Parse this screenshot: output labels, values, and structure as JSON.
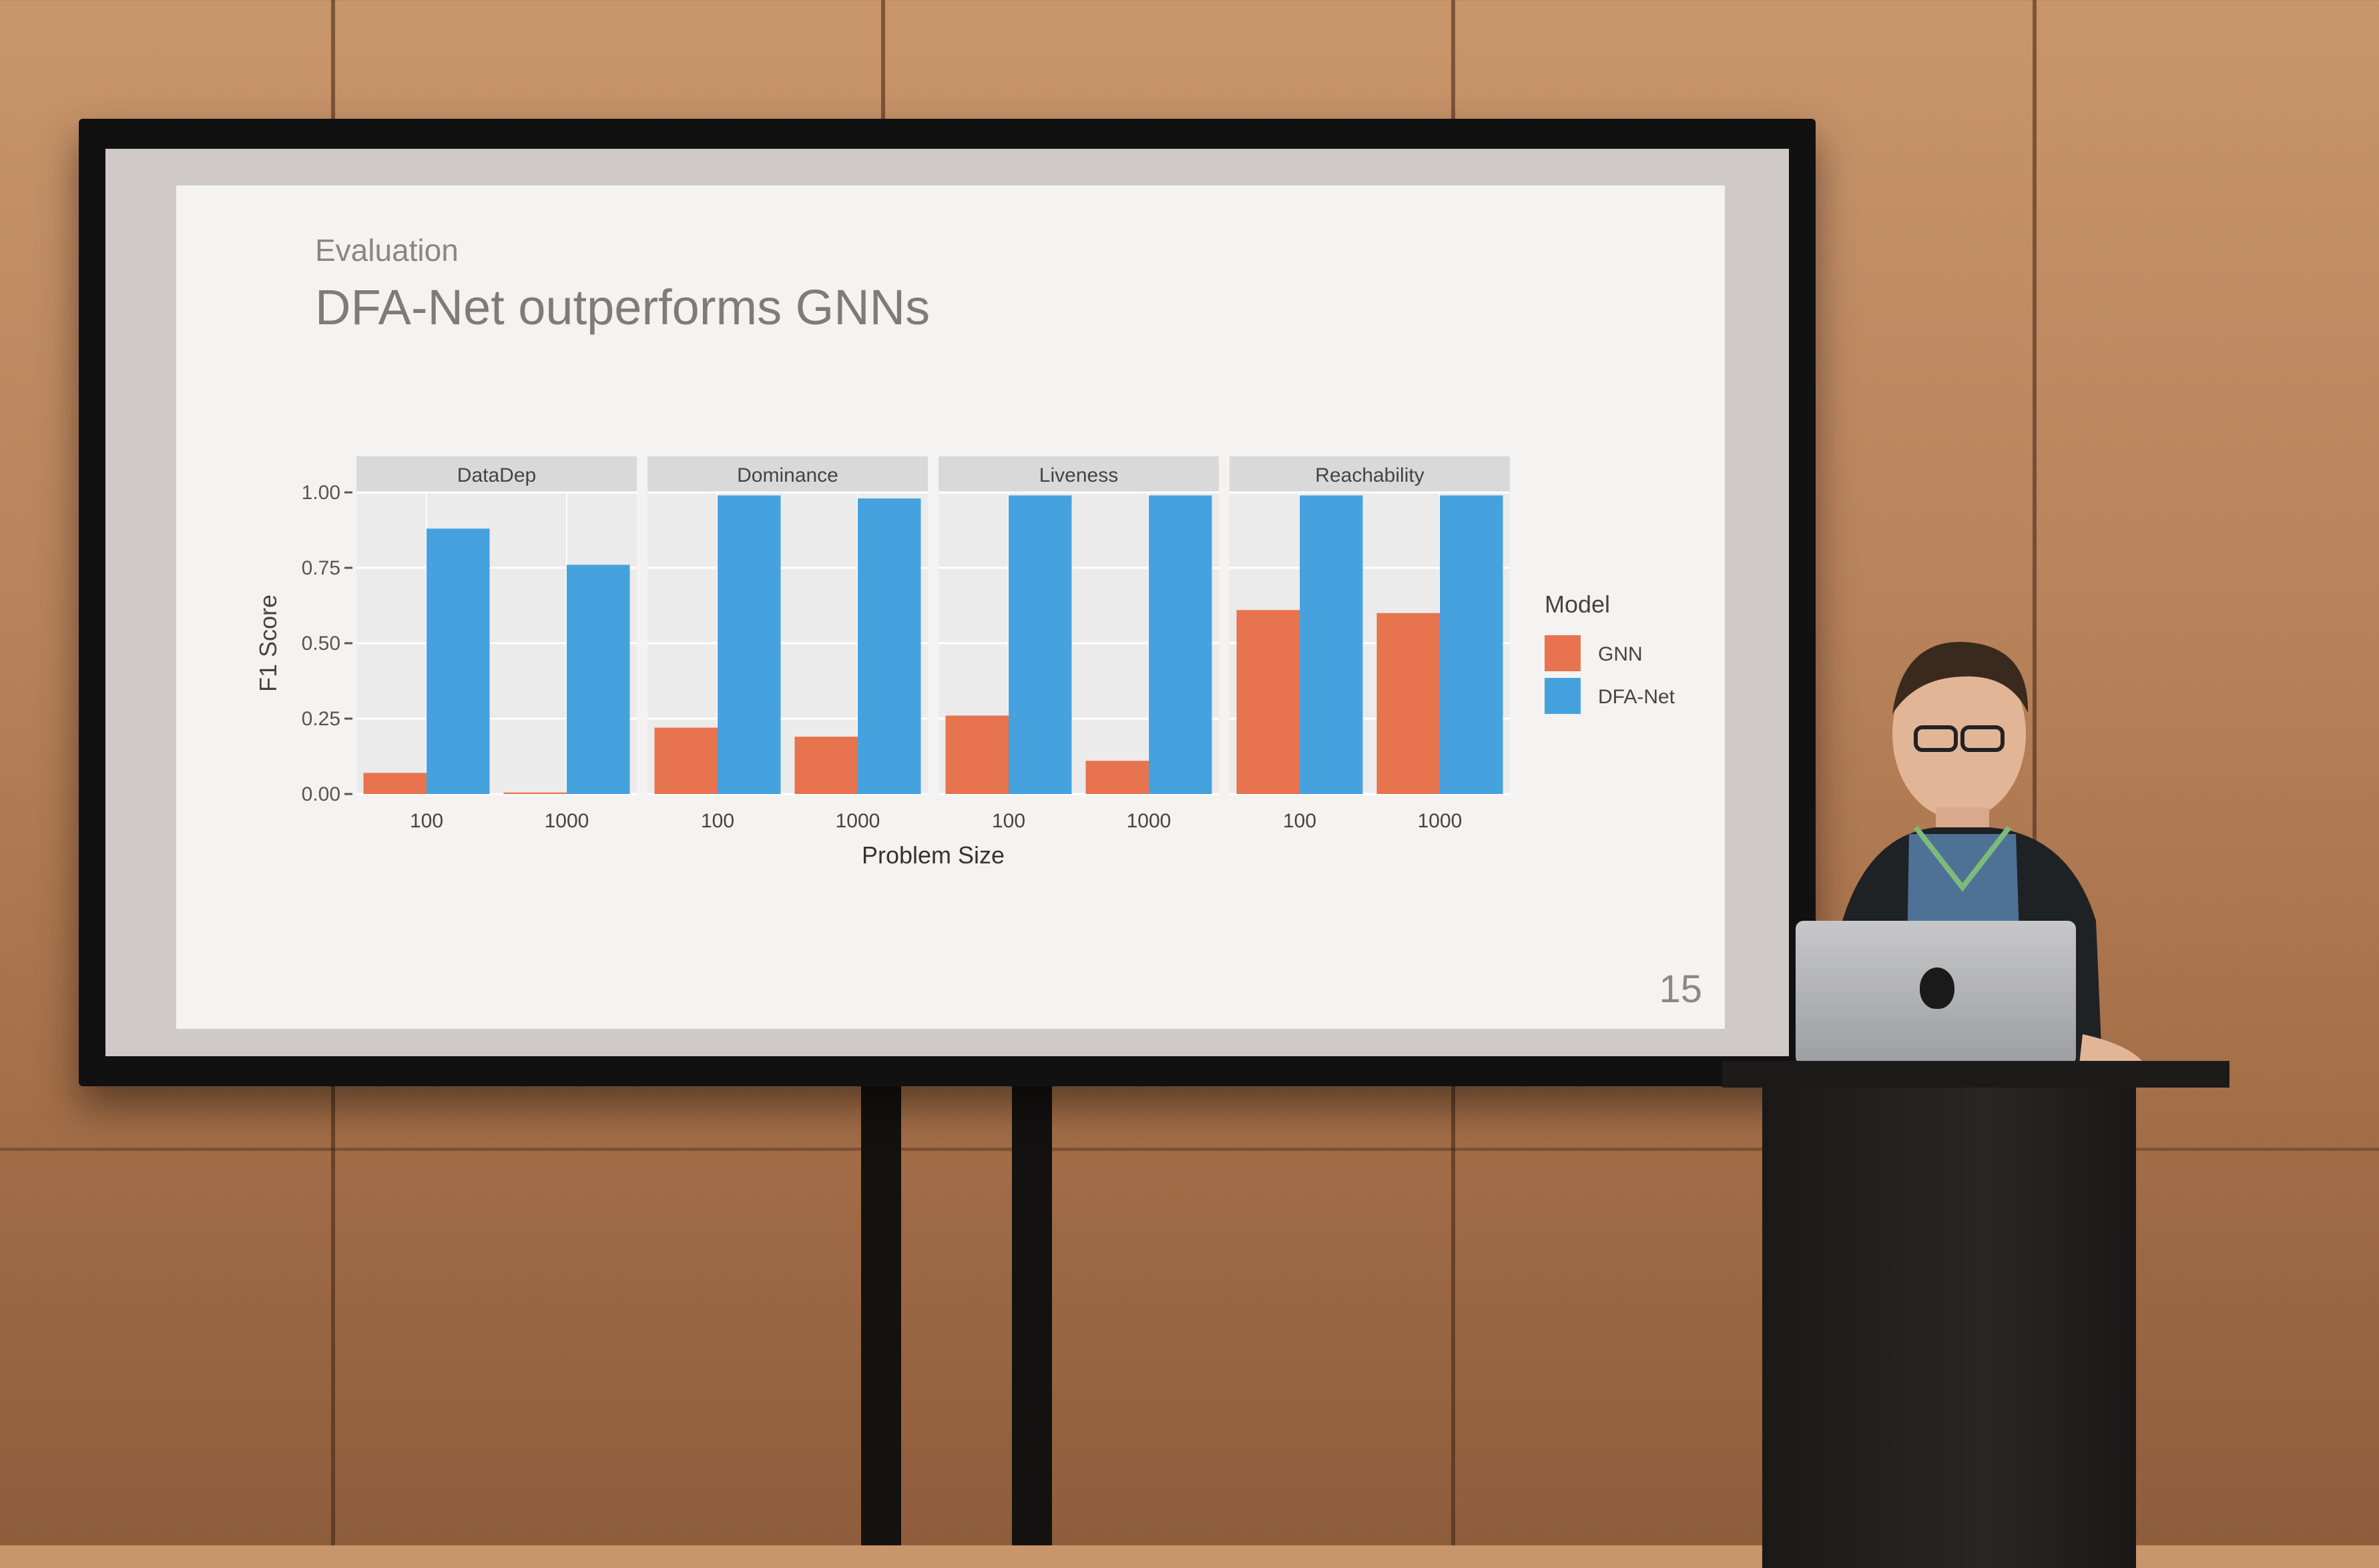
{
  "slide": {
    "kicker": "Evaluation",
    "title": "DFA-Net outperforms GNNs",
    "page_number": "15"
  },
  "chart_data": {
    "type": "bar",
    "xlabel": "Problem Size",
    "ylabel": "F1 Score",
    "ylim": [
      0,
      1.0
    ],
    "yticks": [
      "0.00",
      "0.25",
      "0.50",
      "0.75",
      "1.00"
    ],
    "categories": [
      "100",
      "1000"
    ],
    "legend_title": "Model",
    "legend_placement": "right",
    "colors": {
      "GNN": "#e8734f",
      "DFA-Net": "#45a2df"
    },
    "facets": [
      {
        "name": "DataDep",
        "series": [
          {
            "name": "GNN",
            "values": [
              0.07,
              0.005
            ]
          },
          {
            "name": "DFA-Net",
            "values": [
              0.88,
              0.76
            ]
          }
        ]
      },
      {
        "name": "Dominance",
        "series": [
          {
            "name": "GNN",
            "values": [
              0.22,
              0.19
            ]
          },
          {
            "name": "DFA-Net",
            "values": [
              0.99,
              0.98
            ]
          }
        ]
      },
      {
        "name": "Liveness",
        "series": [
          {
            "name": "GNN",
            "values": [
              0.26,
              0.11
            ]
          },
          {
            "name": "DFA-Net",
            "values": [
              0.99,
              0.99
            ]
          }
        ]
      },
      {
        "name": "Reachability",
        "series": [
          {
            "name": "GNN",
            "values": [
              0.61,
              0.6
            ]
          },
          {
            "name": "DFA-Net",
            "values": [
              0.99,
              0.99
            ]
          }
        ]
      }
    ],
    "grid": true
  }
}
